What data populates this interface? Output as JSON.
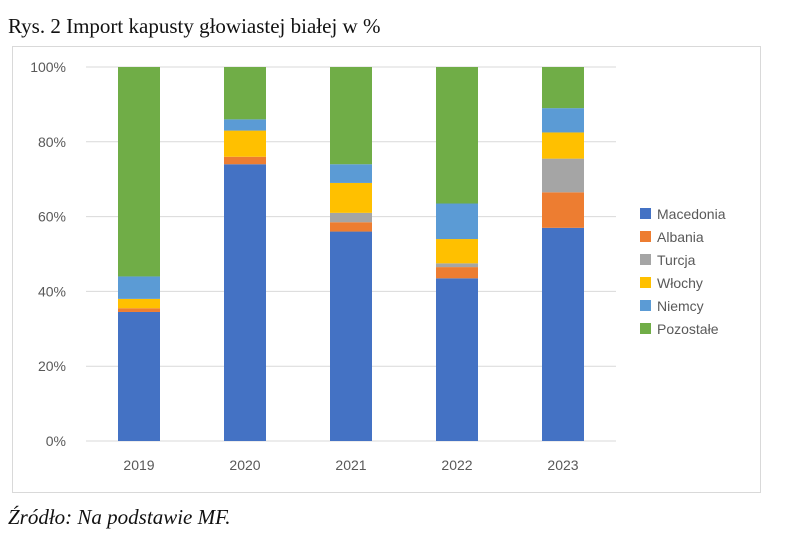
{
  "figure": {
    "caption": "Rys. 2 Import kapusty głowiastej białej w %",
    "source": "Źródło: Na podstawie MF."
  },
  "chart_data": {
    "type": "bar",
    "stacked": true,
    "categories": [
      "2019",
      "2020",
      "2021",
      "2022",
      "2023"
    ],
    "ylim": [
      0,
      100
    ],
    "yticks": [
      0,
      20,
      40,
      60,
      80,
      100
    ],
    "ytick_labels": [
      "0%",
      "20%",
      "40%",
      "60%",
      "80%",
      "100%"
    ],
    "grid": true,
    "legend_position": "right",
    "series": [
      {
        "name": "Macedonia",
        "color": "#4472C4",
        "values": [
          34.5,
          74,
          56,
          43.5,
          57
        ]
      },
      {
        "name": "Albania",
        "color": "#ED7D31",
        "values": [
          1,
          2,
          2.5,
          3,
          9.5
        ]
      },
      {
        "name": "Turcja",
        "color": "#A5A5A5",
        "values": [
          0,
          0,
          2.5,
          1,
          9
        ]
      },
      {
        "name": "Włochy",
        "color": "#FFC000",
        "values": [
          2.5,
          7,
          8,
          6.5,
          7
        ]
      },
      {
        "name": "Niemcy",
        "color": "#5B9BD5",
        "values": [
          6,
          3,
          5,
          9.5,
          6.5
        ]
      },
      {
        "name": "Pozostałe",
        "color": "#70AD47",
        "values": [
          56,
          14,
          26,
          36.5,
          11
        ]
      }
    ]
  }
}
